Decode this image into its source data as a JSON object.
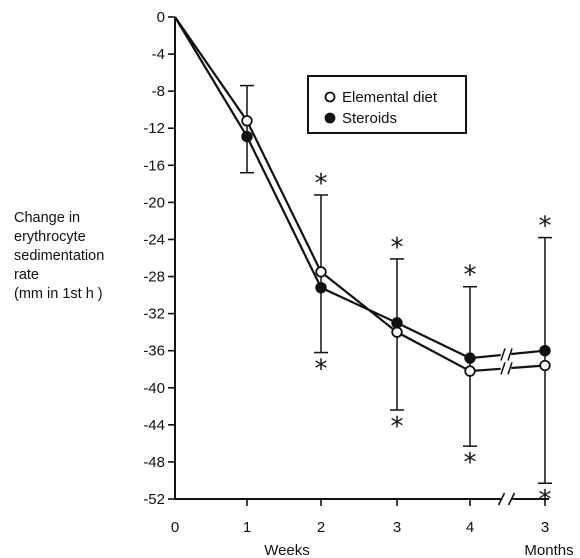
{
  "chart_data": {
    "type": "line",
    "title": "",
    "ylabel": [
      "Change in",
      "erythrocyte",
      "sedimentation",
      "rate",
      "(mm in 1st h )"
    ],
    "x_label_weeks": "Weeks",
    "x_label_months": "Months",
    "categories": [
      "0",
      "1",
      "2",
      "3",
      "4",
      "3"
    ],
    "y_ticks": [
      "0",
      "-4",
      "-8",
      "-12",
      "-16",
      "-20",
      "-24",
      "-28",
      "-32",
      "-36",
      "-40",
      "-44",
      "-48",
      "-52"
    ],
    "ylim": [
      -52,
      0
    ],
    "series": [
      {
        "name": "Elemental diet",
        "marker": "open-circle",
        "values": [
          0,
          -11.2,
          -27.5,
          -34.0,
          -38.2,
          -37.6
        ]
      },
      {
        "name": "Steroids",
        "marker": "filled-circle",
        "values": [
          0,
          -12.9,
          -29.2,
          -33.0,
          -36.8,
          -36.0
        ]
      }
    ],
    "error_bars": [
      {
        "category_index": 1,
        "low": -16.8,
        "high": -7.4
      },
      {
        "category_index": 2,
        "low": -36.2,
        "high": -19.2
      },
      {
        "category_index": 3,
        "low": -42.4,
        "high": -26.1
      },
      {
        "category_index": 4,
        "low": -46.3,
        "high": -29.1
      },
      {
        "category_index": 5,
        "low": -50.3,
        "high": -23.8
      }
    ],
    "significance_markers": [
      {
        "category_index": 2,
        "position": "above",
        "label": "*"
      },
      {
        "category_index": 2,
        "position": "below",
        "label": "*"
      },
      {
        "category_index": 3,
        "position": "above",
        "label": "*"
      },
      {
        "category_index": 3,
        "position": "below",
        "label": "*"
      },
      {
        "category_index": 4,
        "position": "above",
        "label": "*"
      },
      {
        "category_index": 4,
        "position": "below",
        "label": "*"
      },
      {
        "category_index": 5,
        "position": "above",
        "label": "*"
      },
      {
        "category_index": 5,
        "position": "below",
        "label": "*"
      }
    ],
    "axis_break_between": [
      4,
      5
    ],
    "legend_position": "top-right",
    "grid": false,
    "color": "#111111"
  }
}
